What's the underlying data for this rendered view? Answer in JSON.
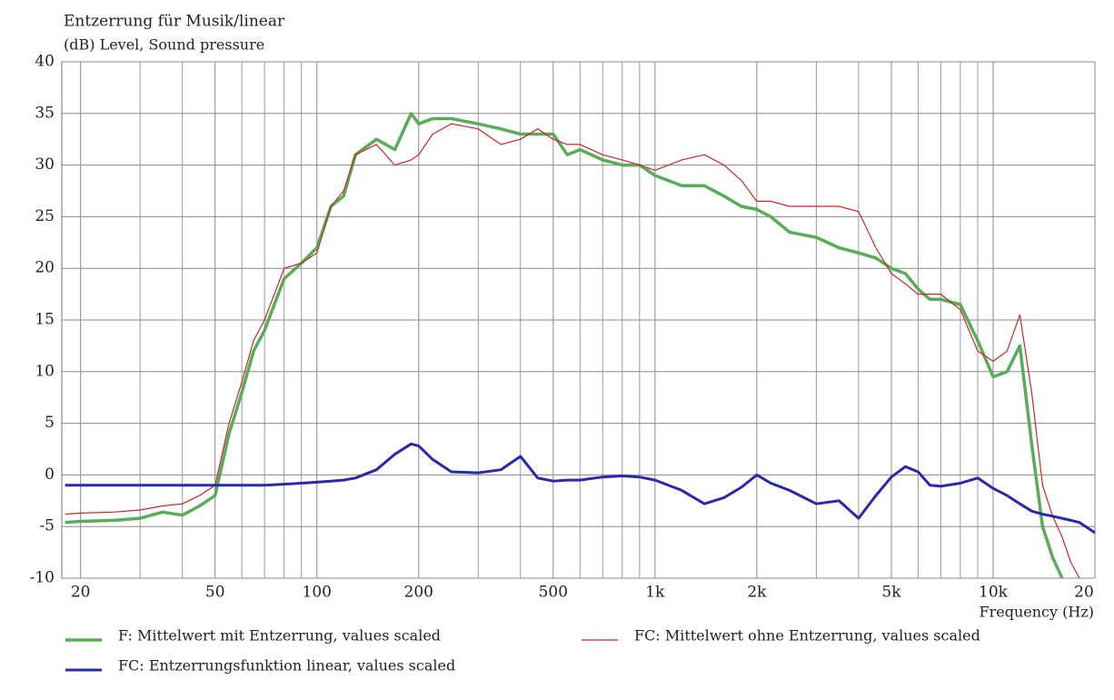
{
  "chart_data": {
    "type": "line",
    "title": "Entzerrung für Musik/linear",
    "subtitle": "(dB)  Level, Sound pressure",
    "x_label": "Frequency  (Hz)",
    "log_x": true,
    "grid": true,
    "xlim": [
      17.6,
      20000
    ],
    "xticks": [
      20,
      50,
      100,
      200,
      500,
      {
        "value": 1000,
        "label": "1k"
      },
      {
        "value": 2000,
        "label": "2k"
      },
      {
        "value": 5000,
        "label": "5k"
      },
      {
        "value": 10000,
        "label": "10k"
      },
      {
        "value": 20000,
        "label": "20"
      }
    ],
    "x_minor_grid": [
      30,
      40,
      60,
      70,
      80,
      90,
      300,
      400,
      600,
      700,
      800,
      900,
      3000,
      4000,
      6000,
      7000,
      8000,
      9000
    ],
    "ylim": [
      -10,
      40
    ],
    "yticks": [
      -10,
      -5,
      0,
      5,
      10,
      15,
      20,
      25,
      30,
      35,
      40
    ],
    "x": [
      18,
      20,
      25,
      30,
      35,
      40,
      45,
      50,
      55,
      60,
      65,
      70,
      80,
      90,
      100,
      110,
      120,
      130,
      150,
      170,
      190,
      200,
      220,
      250,
      300,
      350,
      400,
      450,
      500,
      550,
      600,
      700,
      800,
      900,
      1000,
      1200,
      1400,
      1600,
      1800,
      2000,
      2200,
      2500,
      3000,
      3500,
      4000,
      4500,
      5000,
      5500,
      6000,
      6500,
      7000,
      8000,
      9000,
      10000,
      11000,
      12000,
      13000,
      14000,
      15000,
      16000,
      17000,
      18000,
      20000
    ],
    "series": [
      {
        "name": "F: Mittelwert mit Entzerrung, values scaled",
        "color": "#5aac5a",
        "values": [
          -4.6,
          -4.5,
          -4.4,
          -4.2,
          -3.6,
          -3.9,
          -3,
          -2,
          4,
          8,
          12,
          14,
          19,
          20.5,
          22,
          26,
          27,
          31,
          32.5,
          31.5,
          35,
          34,
          34.5,
          34.5,
          34,
          33.5,
          33,
          33,
          33,
          31,
          31.5,
          30.5,
          30,
          30,
          29,
          28,
          28,
          27,
          26,
          25.7,
          25,
          23.5,
          23,
          22,
          21.5,
          21,
          20,
          19.5,
          18,
          17,
          17,
          16.5,
          13,
          9.5,
          10,
          12.5,
          3,
          -5,
          -8,
          -10,
          null,
          null,
          null
        ]
      },
      {
        "name": "FC: Mittelwert ohne Entzerrung, values scaled",
        "color": "#c82828",
        "values": [
          -3.8,
          -3.7,
          -3.6,
          -3.4,
          -3,
          -2.8,
          -2,
          -1,
          5,
          9,
          13,
          15,
          20,
          20.5,
          21.5,
          26,
          27.5,
          31,
          32,
          30,
          30.5,
          31,
          33,
          34,
          33.5,
          32,
          32.5,
          33.5,
          32.5,
          32,
          32,
          31,
          30.5,
          30,
          29.5,
          30.5,
          31,
          30,
          28.5,
          26.5,
          26.5,
          26,
          26,
          26,
          25.5,
          22,
          19.5,
          18.5,
          17.5,
          17.5,
          17.5,
          16,
          12,
          11,
          12,
          15.5,
          8,
          -1,
          -4,
          -6,
          -8.5,
          -10,
          null
        ]
      },
      {
        "name": "FC: Entzerrungsfunktion linear, values scaled",
        "color": "#2a2aa8",
        "values": [
          -1,
          -1,
          -1,
          -1,
          -1,
          -1,
          -1,
          -1,
          -1,
          -1,
          -1,
          -1,
          -0.9,
          -0.8,
          -0.7,
          -0.6,
          -0.5,
          -0.3,
          0.5,
          2,
          3,
          2.8,
          1.5,
          0.3,
          0.2,
          0.5,
          1.8,
          -0.3,
          -0.6,
          -0.5,
          -0.5,
          -0.2,
          -0.1,
          -0.2,
          -0.5,
          -1.5,
          -2.8,
          -2.2,
          -1.2,
          0,
          -0.8,
          -1.5,
          -2.8,
          -2.5,
          -4.2,
          -2,
          -0.2,
          0.8,
          0.3,
          -1,
          -1.1,
          -0.8,
          -0.3,
          -1.3,
          -2,
          -2.8,
          -3.5,
          -3.8,
          -4,
          -4.2,
          -4.4,
          -4.6,
          -5.6
        ]
      }
    ]
  }
}
